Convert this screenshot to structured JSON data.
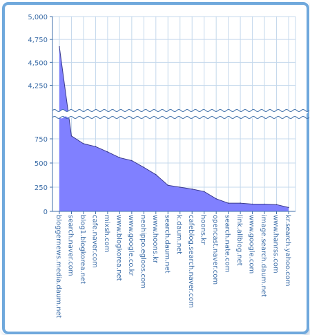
{
  "chart_data": {
    "type": "area",
    "categories": [
      "bloggernews.media.daum.net",
      "search.naver.com",
      "blog1.blogkorea.net",
      "cafe.naver.com",
      "mixsh.com",
      "www.blogkorea.net",
      "www.google.co.kr",
      "neohippo.egloos.com",
      "www.hoons.kr",
      "search.daum.net",
      "k.daum.net",
      "cafeblog.search.naver.com",
      "hoons.kr",
      "opencast.naver.com",
      "search.nate.com",
      "link.allblog.net",
      "www.google.com",
      "image.search.daum.net",
      "www.hanrss.com",
      "kr.search.yahoo.com"
    ],
    "values": [
      4670,
      780,
      700,
      670,
      615,
      555,
      525,
      455,
      380,
      270,
      250,
      230,
      205,
      130,
      85,
      85,
      75,
      75,
      70,
      40
    ],
    "y_ticks_lower": [
      "0",
      "250",
      "500",
      "750"
    ],
    "y_ticks_upper": [
      "4,250",
      "4,500",
      "4,750",
      "5,000"
    ],
    "lower_range": [
      0,
      900
    ],
    "upper_range": [
      4050,
      5000
    ],
    "axis_break": true,
    "grid": true,
    "fill_color": "#8080ff",
    "line_color": "#3a3a8c",
    "axis_color": "#3d6ea8",
    "grid_color": "#c4d8ec"
  }
}
